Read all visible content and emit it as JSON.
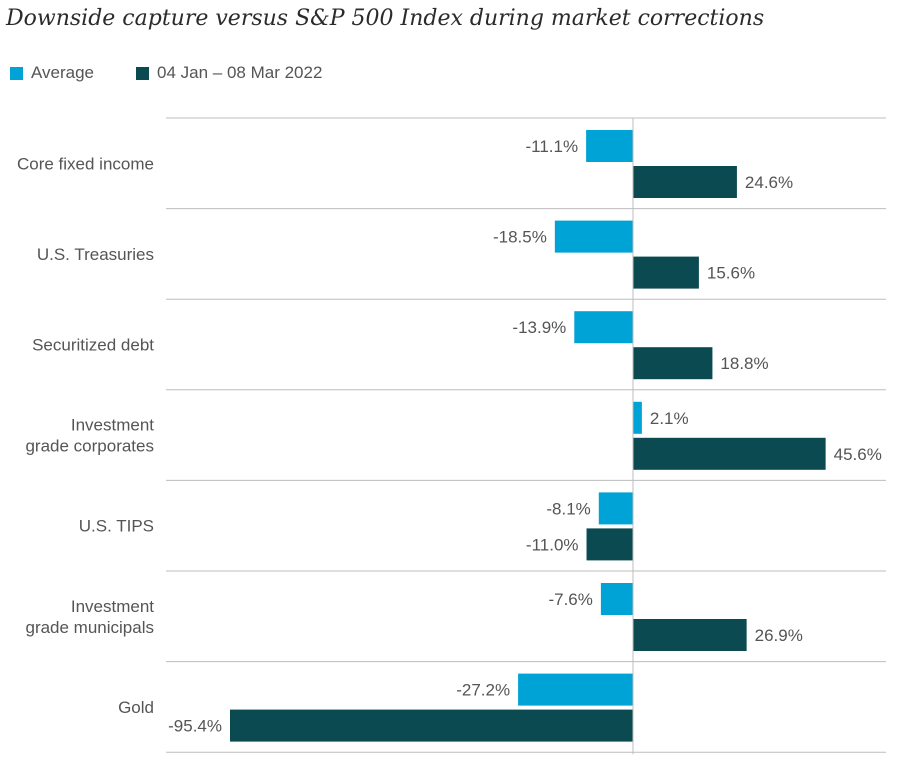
{
  "chart_data": {
    "type": "bar",
    "orientation": "horizontal",
    "title": "Downside capture versus S&P 500 Index during market corrections",
    "categories": [
      "Core fixed income",
      "U.S. Treasuries",
      "Securitized debt",
      "Investment grade corporates",
      "U.S. TIPS",
      "Investment grade municipals",
      "Gold"
    ],
    "series": [
      {
        "name": "Average",
        "color": "#00a3d6",
        "values": [
          -11.1,
          -18.5,
          -13.9,
          2.1,
          -8.1,
          -7.6,
          -27.2
        ],
        "labels": [
          "-11.1%",
          "-18.5%",
          "-13.9%",
          "2.1%",
          "-8.1%",
          "-7.6%",
          "-27.2%"
        ]
      },
      {
        "name": "04 Jan – 08 Mar 2022",
        "color": "#0b4a50",
        "values": [
          24.6,
          15.6,
          18.8,
          45.6,
          -11.0,
          26.9,
          -95.4
        ],
        "labels": [
          "24.6%",
          "15.6%",
          "18.8%",
          "45.6%",
          "-11.0%",
          "26.9%",
          "-95.4%"
        ]
      }
    ],
    "xlim": [
      -95.4,
      60
    ],
    "legend": "top-left",
    "grid": false
  }
}
